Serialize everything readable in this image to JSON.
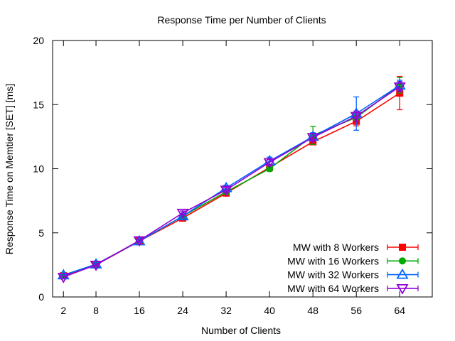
{
  "chart_data": {
    "type": "line",
    "title": "Response Time per Number of Clients",
    "xlabel": "Number of Clients",
    "ylabel": "Response Time on Memtier [SET] [ms]",
    "x": [
      2,
      8,
      16,
      24,
      32,
      40,
      48,
      56,
      64
    ],
    "x_ticks": [
      "2",
      "8",
      "16",
      "24",
      "32",
      "40",
      "48",
      "56",
      "64"
    ],
    "y_ticks": [
      "0",
      "5",
      "10",
      "15",
      "20"
    ],
    "xlim": [
      0,
      70
    ],
    "ylim": [
      0,
      20
    ],
    "grid": false,
    "legend_position": "bottom-right",
    "series": [
      {
        "name": "MW with 8 Workers",
        "color": "#ff0000",
        "marker": "square",
        "values": [
          1.65,
          2.5,
          4.35,
          6.15,
          8.1,
          10.1,
          12.1,
          13.7,
          15.9
        ],
        "errors": [
          0.1,
          0.1,
          0.1,
          0.15,
          0.15,
          0.2,
          0.2,
          0.35,
          1.3
        ]
      },
      {
        "name": "MW with 16 Workers",
        "color": "#00aa00",
        "marker": "circle",
        "values": [
          1.7,
          2.55,
          4.35,
          6.3,
          8.2,
          10.0,
          12.6,
          14.0,
          16.5
        ],
        "errors": [
          0.1,
          0.1,
          0.1,
          0.15,
          0.2,
          0.2,
          0.7,
          0.3,
          0.6
        ]
      },
      {
        "name": "MW with 32 Workers",
        "color": "#0066ff",
        "marker": "triangle-up",
        "values": [
          1.7,
          2.55,
          4.35,
          6.3,
          8.5,
          10.6,
          12.5,
          14.3,
          16.5
        ],
        "errors": [
          0.1,
          0.1,
          0.1,
          0.15,
          0.2,
          0.3,
          0.3,
          1.3,
          0.4
        ]
      },
      {
        "name": "MW with 64 Workers",
        "color": "#9400d3",
        "marker": "triangle-down",
        "values": [
          1.55,
          2.5,
          4.4,
          6.55,
          8.35,
          10.5,
          12.45,
          14.1,
          16.4
        ],
        "errors": [
          0.1,
          0.1,
          0.1,
          0.15,
          0.2,
          0.2,
          0.3,
          0.4,
          0.4
        ]
      }
    ]
  }
}
